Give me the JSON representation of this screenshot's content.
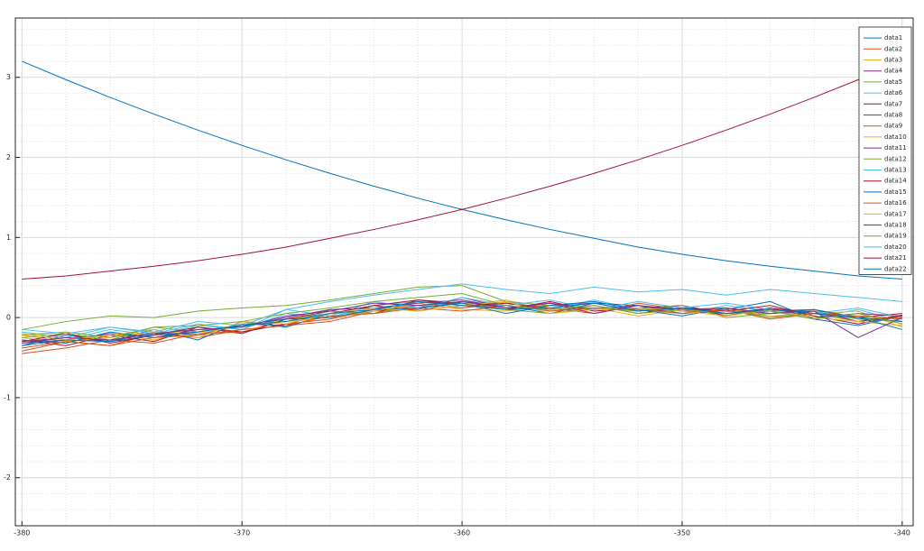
{
  "chart_data": {
    "type": "line",
    "x": [
      -380,
      -378,
      -376,
      -374,
      -372,
      -370,
      -368,
      -366,
      -364,
      -362,
      -360,
      -358,
      -356,
      -354,
      -352,
      -350,
      -348,
      -346,
      -344,
      -342,
      -340
    ],
    "xlim": [
      -380.3,
      -339.5
    ],
    "ylim": [
      -2.6,
      3.74
    ],
    "xticks": [
      -380,
      -370,
      -360,
      -350,
      -340
    ],
    "yticks": [
      -2,
      -1,
      0,
      1,
      2,
      3
    ],
    "grid": true,
    "minor_grid": true,
    "legend": "northeast",
    "series": [
      {
        "name": "data1",
        "color": "#0072bd",
        "values": [
          3.2,
          2.97,
          2.75,
          2.54,
          2.34,
          2.15,
          1.97,
          1.8,
          1.64,
          1.49,
          1.35,
          1.22,
          1.1,
          0.99,
          0.88,
          0.79,
          0.71,
          0.64,
          0.58,
          0.52,
          0.48
        ]
      },
      {
        "name": "data2",
        "color": "#d95319",
        "values": [
          -0.42,
          -0.3,
          -0.35,
          -0.2,
          -0.25,
          -0.15,
          -0.1,
          -0.05,
          0.08,
          0.12,
          0.2,
          0.1,
          0.18,
          0.05,
          0.15,
          0.08,
          0.12,
          0.0,
          0.08,
          -0.05,
          0.02
        ]
      },
      {
        "name": "data3",
        "color": "#edb120",
        "values": [
          -0.25,
          -0.32,
          -0.2,
          -0.28,
          -0.15,
          -0.18,
          -0.02,
          0.05,
          0.05,
          0.2,
          0.15,
          0.22,
          0.08,
          0.15,
          0.05,
          0.12,
          0.03,
          0.1,
          -0.02,
          0.05,
          -0.08
        ]
      },
      {
        "name": "data4",
        "color": "#7e2f8e",
        "values": [
          -0.3,
          -0.25,
          -0.3,
          -0.18,
          -0.22,
          -0.08,
          -0.1,
          0.1,
          0.12,
          0.1,
          0.25,
          0.12,
          0.15,
          0.18,
          0.08,
          0.15,
          0.05,
          0.08,
          0.1,
          -0.05,
          0.03
        ]
      },
      {
        "name": "data5",
        "color": "#77ac30",
        "values": [
          -0.15,
          -0.05,
          0.02,
          0.0,
          0.08,
          0.12,
          0.15,
          0.22,
          0.3,
          0.38,
          0.4,
          0.2,
          0.15,
          0.1,
          0.12,
          0.05,
          0.1,
          0.0,
          0.05,
          -0.05,
          -0.1
        ]
      },
      {
        "name": "data6",
        "color": "#4dbeee",
        "values": [
          -0.2,
          -0.28,
          -0.15,
          -0.22,
          -0.1,
          -0.15,
          0.05,
          0.0,
          0.15,
          0.2,
          0.12,
          0.2,
          0.1,
          0.22,
          0.1,
          0.05,
          0.15,
          0.08,
          0.0,
          0.1,
          -0.05
        ]
      },
      {
        "name": "data7",
        "color": "#a2142f",
        "values": [
          -0.28,
          -0.35,
          -0.22,
          -0.3,
          -0.12,
          -0.2,
          -0.02,
          0.08,
          0.05,
          0.22,
          0.18,
          0.1,
          0.2,
          0.08,
          0.12,
          0.15,
          0.02,
          0.12,
          0.05,
          0.0,
          0.05
        ]
      },
      {
        "name": "data8",
        "color": "#0072bd",
        "values": [
          -0.35,
          -0.22,
          -0.3,
          -0.15,
          -0.28,
          -0.05,
          -0.12,
          0.05,
          0.15,
          0.08,
          0.2,
          0.15,
          0.05,
          0.18,
          0.15,
          0.05,
          0.1,
          0.2,
          -0.02,
          -0.1,
          0.02
        ]
      },
      {
        "name": "data9",
        "color": "#d95319",
        "values": [
          -0.45,
          -0.38,
          -0.28,
          -0.32,
          -0.2,
          -0.18,
          -0.08,
          -0.02,
          0.1,
          0.15,
          0.12,
          0.18,
          0.12,
          0.05,
          0.18,
          0.1,
          0.08,
          0.05,
          0.1,
          -0.02,
          0.0
        ]
      },
      {
        "name": "data10",
        "color": "#edb120",
        "values": [
          -0.22,
          -0.3,
          -0.25,
          -0.18,
          -0.2,
          -0.1,
          -0.05,
          0.0,
          0.08,
          0.18,
          0.1,
          0.08,
          0.15,
          0.12,
          0.02,
          0.1,
          0.12,
          0.02,
          0.05,
          0.08,
          -0.12
        ]
      },
      {
        "name": "data11",
        "color": "#7e2f8e",
        "values": [
          -0.32,
          -0.28,
          -0.2,
          -0.25,
          -0.15,
          -0.12,
          0.0,
          0.1,
          0.12,
          0.18,
          0.22,
          0.12,
          0.18,
          0.1,
          0.15,
          0.08,
          0.05,
          0.12,
          0.0,
          0.05,
          0.02
        ]
      },
      {
        "name": "data12",
        "color": "#77ac30",
        "values": [
          -0.25,
          -0.2,
          -0.28,
          -0.12,
          -0.18,
          -0.08,
          -0.05,
          0.08,
          0.05,
          0.15,
          0.2,
          0.1,
          0.05,
          0.12,
          0.08,
          0.15,
          0.0,
          0.05,
          0.08,
          -0.02,
          -0.05
        ]
      },
      {
        "name": "data13",
        "color": "#4dbeee",
        "values": [
          -0.18,
          -0.25,
          -0.12,
          -0.2,
          -0.08,
          -0.15,
          0.1,
          0.02,
          0.2,
          0.12,
          0.25,
          0.15,
          0.22,
          0.1,
          0.2,
          0.12,
          0.18,
          0.1,
          0.05,
          0.12,
          0.0
        ]
      },
      {
        "name": "data14",
        "color": "#a2142f",
        "values": [
          -0.3,
          -0.2,
          -0.32,
          -0.22,
          -0.12,
          -0.18,
          -0.08,
          0.05,
          0.15,
          0.22,
          0.15,
          0.18,
          0.1,
          0.15,
          0.05,
          0.12,
          0.08,
          0.15,
          0.02,
          -0.08,
          0.03
        ]
      },
      {
        "name": "data15",
        "color": "#0072bd",
        "values": [
          -0.28,
          -0.32,
          -0.18,
          -0.25,
          -0.18,
          -0.1,
          -0.02,
          0.0,
          0.1,
          0.12,
          0.18,
          0.05,
          0.15,
          0.2,
          0.1,
          0.02,
          0.12,
          0.05,
          0.1,
          0.0,
          -0.05
        ]
      },
      {
        "name": "data16",
        "color": "#d95319",
        "values": [
          -0.38,
          -0.3,
          -0.35,
          -0.25,
          -0.22,
          -0.15,
          -0.1,
          0.02,
          0.05,
          0.12,
          0.08,
          0.15,
          0.08,
          0.12,
          0.1,
          0.05,
          0.1,
          -0.02,
          0.05,
          0.02,
          -0.02
        ]
      },
      {
        "name": "data17",
        "color": "#edb120",
        "values": [
          -0.2,
          -0.28,
          -0.22,
          -0.15,
          -0.25,
          -0.05,
          -0.08,
          0.05,
          0.12,
          0.08,
          0.15,
          0.2,
          0.05,
          0.1,
          0.12,
          0.08,
          0.02,
          0.1,
          0.0,
          -0.05,
          -0.1
        ]
      },
      {
        "name": "data18",
        "color": "#7e2f8e",
        "values": [
          -0.32,
          -0.25,
          -0.28,
          -0.2,
          -0.15,
          -0.12,
          0.02,
          0.08,
          0.18,
          0.15,
          0.2,
          0.12,
          0.18,
          0.05,
          0.15,
          0.1,
          0.12,
          0.05,
          0.08,
          -0.25,
          0.0
        ]
      },
      {
        "name": "data19",
        "color": "#77ac30",
        "values": [
          -0.22,
          -0.18,
          -0.25,
          -0.12,
          -0.1,
          -0.05,
          0.05,
          0.12,
          0.2,
          0.25,
          0.3,
          0.15,
          0.1,
          0.15,
          0.05,
          0.1,
          0.05,
          0.08,
          -0.02,
          0.05,
          -0.08
        ]
      },
      {
        "name": "data20",
        "color": "#4dbeee",
        "values": [
          -0.15,
          -0.2,
          -0.12,
          -0.18,
          -0.05,
          -0.1,
          0.1,
          0.2,
          0.28,
          0.35,
          0.42,
          0.35,
          0.3,
          0.38,
          0.32,
          0.35,
          0.28,
          0.35,
          0.3,
          0.25,
          0.2
        ]
      },
      {
        "name": "data21",
        "color": "#a2142f",
        "values": [
          0.48,
          0.52,
          0.58,
          0.64,
          0.71,
          0.79,
          0.88,
          0.99,
          1.1,
          1.22,
          1.35,
          1.49,
          1.64,
          1.8,
          1.97,
          2.15,
          2.34,
          2.54,
          2.75,
          2.97,
          3.13
        ]
      },
      {
        "name": "data22",
        "color": "#0072bd",
        "values": [
          -0.35,
          -0.28,
          -0.3,
          -0.22,
          -0.18,
          -0.1,
          -0.05,
          0.05,
          0.1,
          0.2,
          0.15,
          0.1,
          0.12,
          0.18,
          0.08,
          0.12,
          0.05,
          0.1,
          0.05,
          0.0,
          -0.15
        ]
      }
    ]
  }
}
